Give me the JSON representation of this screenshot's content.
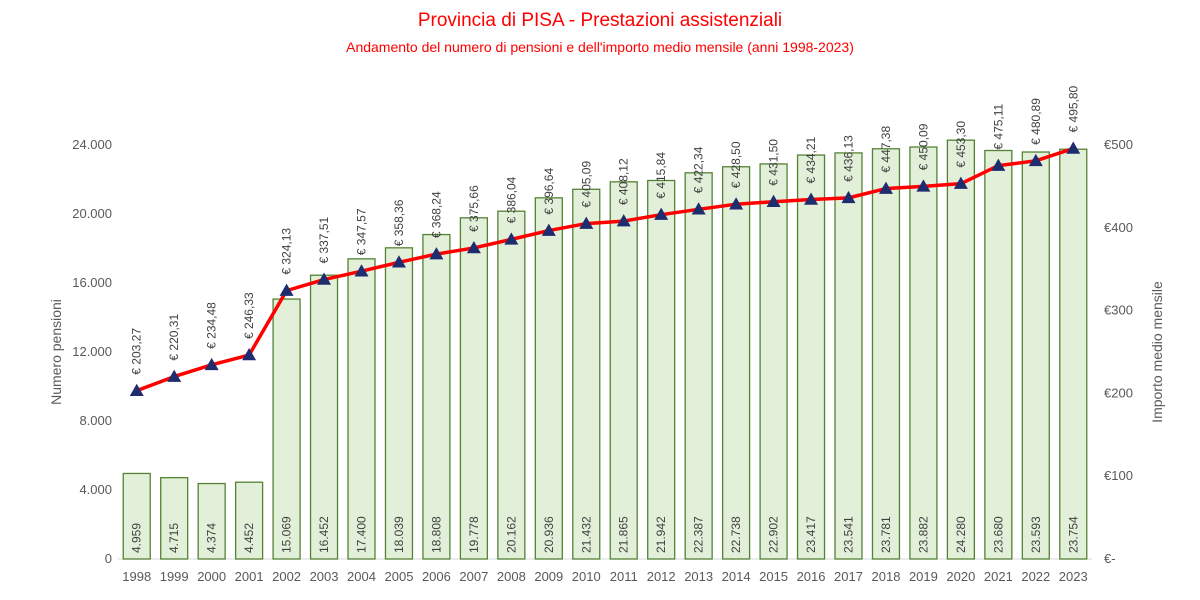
{
  "chart_data": {
    "type": "bar",
    "title": "Provincia di PISA - Prestazioni assistenziali",
    "subtitle": "Andamento del numero di pensioni e dell'importo medio mensile (anni 1998-2023)",
    "ylabel": "Numero pensioni",
    "y2label": "Importo medio mensile",
    "categories": [
      "1998",
      "1999",
      "2000",
      "2001",
      "2002",
      "2003",
      "2004",
      "2005",
      "2006",
      "2007",
      "2008",
      "2009",
      "2010",
      "2011",
      "2012",
      "2013",
      "2014",
      "2015",
      "2016",
      "2017",
      "2018",
      "2019",
      "2020",
      "2021",
      "2022",
      "2023"
    ],
    "ylim": [
      0,
      24000
    ],
    "y2lim": [
      0,
      500
    ],
    "yticks": [
      0,
      4000,
      8000,
      12000,
      16000,
      20000,
      24000
    ],
    "ytick_labels": [
      "0",
      "4.000",
      "8.000",
      "12.000",
      "16.000",
      "20.000",
      "24.000"
    ],
    "y2ticks": [
      0,
      100,
      200,
      300,
      400,
      500
    ],
    "y2tick_labels": [
      "€-",
      "€100",
      "€200",
      "€300",
      "€400",
      "€500"
    ],
    "series": [
      {
        "type": "bar",
        "axis": "left",
        "values": [
          4959,
          4715,
          4374,
          4452,
          15069,
          16452,
          17400,
          18039,
          18808,
          19778,
          20162,
          20936,
          21432,
          21865,
          21942,
          22387,
          22738,
          22902,
          23417,
          23541,
          23781,
          23882,
          24280,
          23680,
          23593,
          23754
        ],
        "labels": [
          "4.959",
          "4.715",
          "4.374",
          "4.452",
          "15.069",
          "16.452",
          "17.400",
          "18.039",
          "18.808",
          "19.778",
          "20.162",
          "20.936",
          "21.432",
          "21.865",
          "21.942",
          "22.387",
          "22.738",
          "22.902",
          "23.417",
          "23.541",
          "23.781",
          "23.882",
          "24.280",
          "23.680",
          "23.593",
          "23.754"
        ]
      },
      {
        "type": "line",
        "axis": "right",
        "values": [
          203.27,
          220.31,
          234.48,
          246.33,
          324.13,
          337.51,
          347.57,
          358.36,
          368.24,
          375.66,
          386.04,
          396.64,
          405.09,
          408.12,
          415.84,
          422.34,
          428.5,
          431.5,
          434.21,
          436.13,
          447.38,
          450.09,
          453.3,
          475.11,
          480.89,
          495.8
        ],
        "labels": [
          "€ 203,27",
          "€ 220,31",
          "€ 234,48",
          "€ 246,33",
          "€ 324,13",
          "€ 337,51",
          "€ 347,57",
          "€ 358,36",
          "€ 368,24",
          "€ 375,66",
          "€ 386,04",
          "€ 396,64",
          "€ 405,09",
          "€ 408,12",
          "€ 415,84",
          "€ 422,34",
          "€ 428,50",
          "€ 431,50",
          "€ 434,21",
          "€ 436,13",
          "€ 447,38",
          "€ 450,09",
          "€ 453,30",
          "€ 475,11",
          "€ 480,89",
          "€ 495,80"
        ]
      }
    ],
    "colors": {
      "bar_fill": "#e2f0d9",
      "bar_stroke": "#548235",
      "line": "#ff0000",
      "marker": "#1f2d6e",
      "title": "#ff0000",
      "axis_text": "#595959",
      "axis_line": "#d9d9d9"
    },
    "grid": false,
    "legend": "none"
  }
}
